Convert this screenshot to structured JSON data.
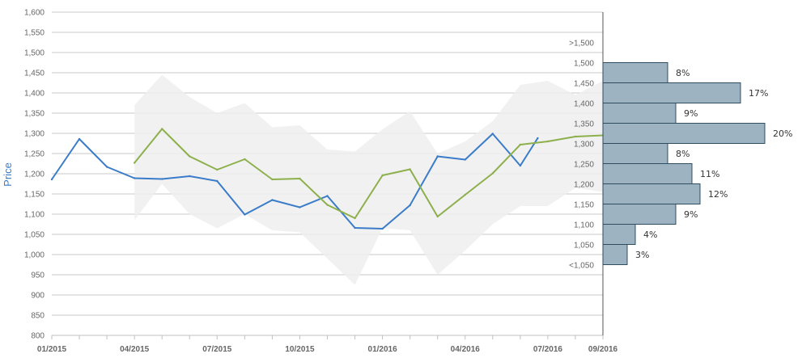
{
  "chart_data": {
    "type": "line",
    "ylabel": "Price",
    "xlabel": "",
    "ylim": [
      800,
      1600
    ],
    "y_ticks": [
      800,
      850,
      900,
      950,
      1000,
      1050,
      1100,
      1150,
      1200,
      1250,
      1300,
      1350,
      1400,
      1450,
      1500,
      1550,
      1600
    ],
    "x_range": [
      "2015-01",
      "2016-09"
    ],
    "x_ticks": [
      "01/2015",
      "04/2015",
      "07/2015",
      "10/2015",
      "01/2016",
      "04/2016",
      "07/2016",
      "09/2016"
    ],
    "grid": true,
    "colors": {
      "actual": "#3a7cc9",
      "forecast": "#8db04c",
      "band": "#efefef",
      "histogram": "#9db3c2",
      "histogram_border": "#2f4d61"
    },
    "series": [
      {
        "key": "actual",
        "x": [
          "2015-01",
          "2015-02",
          "2015-03",
          "2015-04",
          "2015-05",
          "2015-06",
          "2015-07",
          "2015-08",
          "2015-09",
          "2015-10",
          "2015-11",
          "2015-12",
          "2016-01",
          "2016-02",
          "2016-03",
          "2016-04",
          "2016-05",
          "2016-06",
          "2016-06-20"
        ],
        "y": [
          1186,
          1286,
          1217,
          1189,
          1187,
          1194,
          1182,
          1099,
          1135,
          1117,
          1145,
          1066,
          1064,
          1122,
          1243,
          1235,
          1299,
          1220,
          1288
        ]
      },
      {
        "key": "forecast",
        "x": [
          "2015-04",
          "2015-05",
          "2015-06",
          "2015-07",
          "2015-08",
          "2015-09",
          "2015-10",
          "2015-11",
          "2015-12",
          "2016-01",
          "2016-02",
          "2016-03",
          "2016-04",
          "2016-05",
          "2016-06",
          "2016-07",
          "2016-08",
          "2016-09"
        ],
        "y": [
          1227,
          1311,
          1243,
          1210,
          1236,
          1186,
          1188,
          1123,
          1090,
          1196,
          1211,
          1094,
          1148,
          1201,
          1272,
          1280,
          1292,
          1295
        ]
      }
    ],
    "band": {
      "x": [
        "2015-04",
        "2015-05",
        "2015-06",
        "2015-07",
        "2015-08",
        "2015-09",
        "2015-10",
        "2015-11",
        "2015-12",
        "2016-01",
        "2016-02",
        "2016-03",
        "2016-04",
        "2016-05",
        "2016-06",
        "2016-07",
        "2016-08",
        "2016-09"
      ],
      "upper": [
        1370,
        1445,
        1390,
        1350,
        1375,
        1315,
        1320,
        1260,
        1255,
        1310,
        1355,
        1250,
        1280,
        1330,
        1420,
        1430,
        1395,
        1430
      ],
      "lower": [
        1085,
        1175,
        1100,
        1065,
        1100,
        1060,
        1055,
        990,
        925,
        1065,
        1060,
        950,
        1010,
        1075,
        1120,
        1120,
        1165,
        1155
      ]
    },
    "histogram": {
      "bins": [
        ">1,500",
        "1,500",
        "1,450",
        "1,400",
        "1,350",
        "1,300",
        "1,250",
        "1,200",
        "1,150",
        "1,100",
        "1,050",
        "<1,050"
      ],
      "percent_values": [
        8,
        17,
        9,
        20,
        8,
        11,
        12,
        9,
        4,
        3
      ],
      "percent_labels": [
        "8%",
        "17%",
        "9%",
        "20%",
        "8%",
        "11%",
        "12%",
        "9%",
        "4%",
        "3%"
      ]
    }
  }
}
